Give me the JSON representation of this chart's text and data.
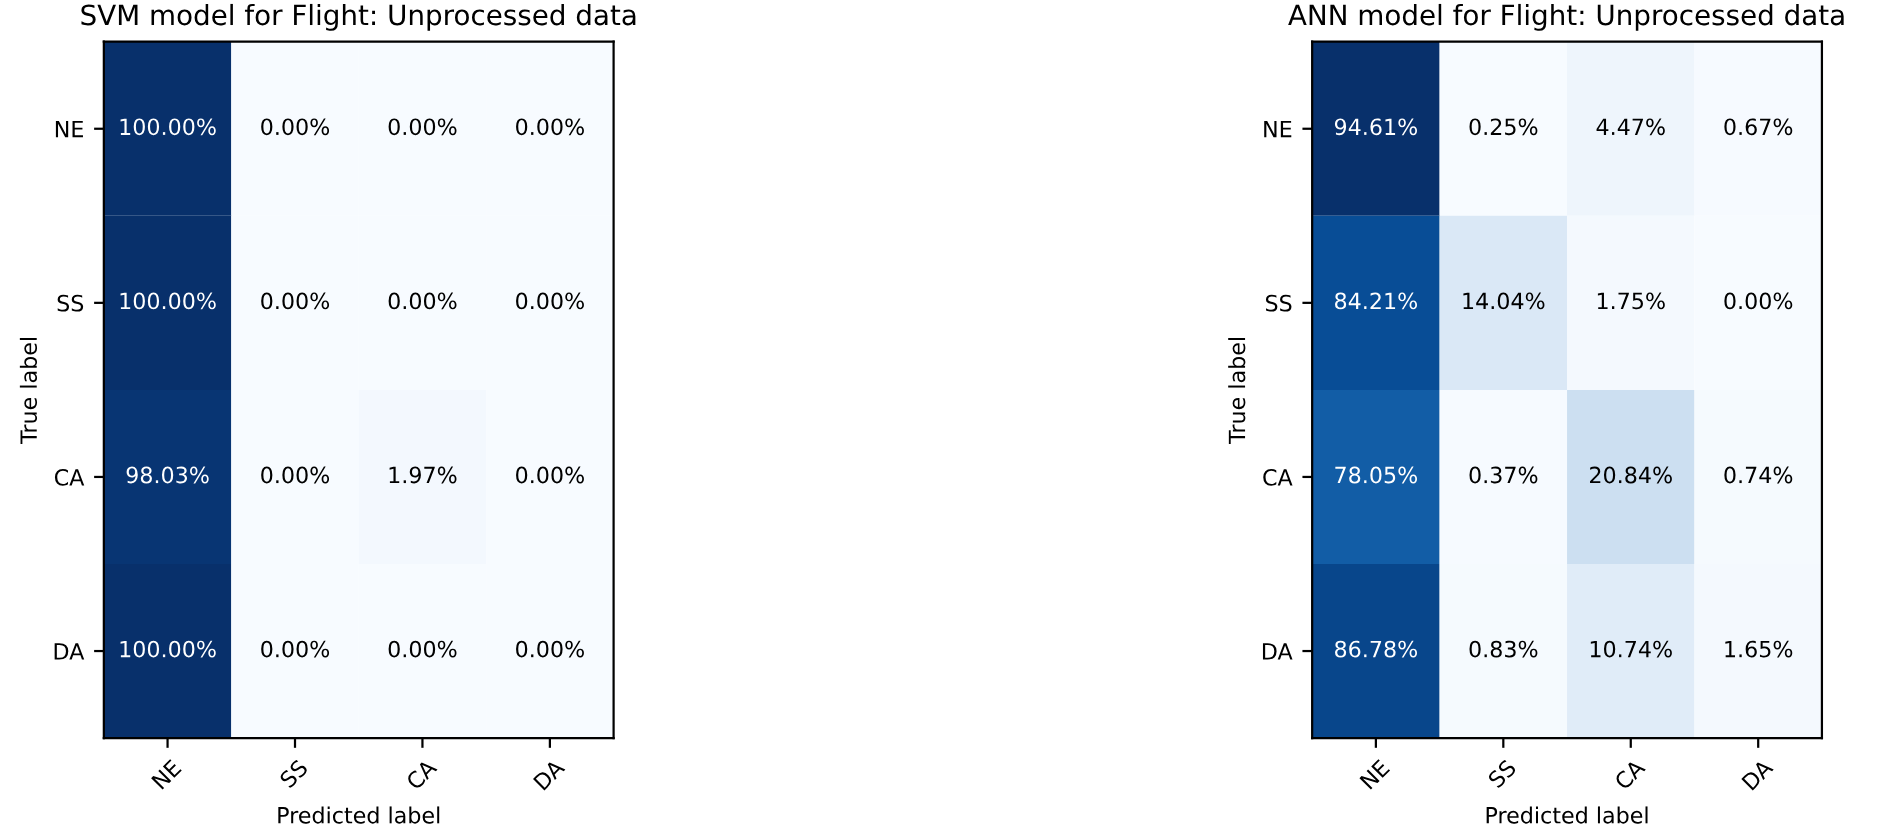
{
  "chart_data": [
    {
      "type": "heatmap",
      "title": "SVM model for Flight: Unprocessed data",
      "xlabel": "Predicted label",
      "ylabel": "True label",
      "categories": [
        "NE",
        "SS",
        "CA",
        "DA"
      ],
      "y_categories": [
        "NE",
        "SS",
        "CA",
        "DA"
      ],
      "cells": [
        [
          100.0,
          0.0,
          0.0,
          0.0
        ],
        [
          100.0,
          0.0,
          0.0,
          0.0
        ],
        [
          98.03,
          0.0,
          1.97,
          0.0
        ],
        [
          100.0,
          0.0,
          0.0,
          0.0
        ]
      ],
      "cell_labels": [
        [
          "100.00%",
          "0.00%",
          "0.00%",
          "0.00%"
        ],
        [
          "100.00%",
          "0.00%",
          "0.00%",
          "0.00%"
        ],
        [
          "98.03%",
          "0.00%",
          "1.97%",
          "0.00%"
        ],
        [
          "100.00%",
          "0.00%",
          "0.00%",
          "0.00%"
        ]
      ]
    },
    {
      "type": "heatmap",
      "title": "ANN model for Flight: Unprocessed data",
      "xlabel": "Predicted label",
      "ylabel": "True label",
      "categories": [
        "NE",
        "SS",
        "CA",
        "DA"
      ],
      "y_categories": [
        "NE",
        "SS",
        "CA",
        "DA"
      ],
      "cells": [
        [
          94.61,
          0.25,
          4.47,
          0.67
        ],
        [
          84.21,
          14.04,
          1.75,
          0.0
        ],
        [
          78.05,
          0.37,
          20.84,
          0.74
        ],
        [
          86.78,
          0.83,
          10.74,
          1.65
        ]
      ],
      "cell_labels": [
        [
          "94.61%",
          "0.25%",
          "4.47%",
          "0.67%"
        ],
        [
          "84.21%",
          "14.04%",
          "1.75%",
          "0.00%"
        ],
        [
          "78.05%",
          "0.37%",
          "20.84%",
          "0.74%"
        ],
        [
          "86.78%",
          "0.83%",
          "10.74%",
          "1.65%"
        ]
      ]
    }
  ]
}
